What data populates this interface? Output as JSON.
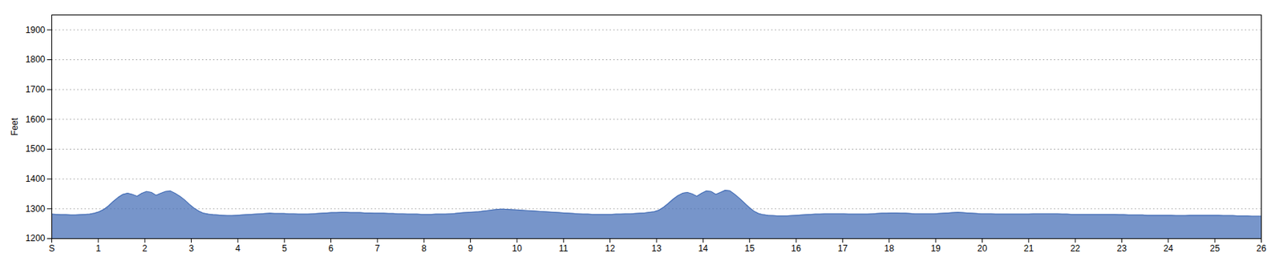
{
  "chart_data": {
    "type": "area",
    "ylabel": "Feet",
    "color": "#4a72b8",
    "grid": "y",
    "xlim": [
      0,
      26
    ],
    "xticks": [
      {
        "value": 0,
        "label": "S"
      },
      1,
      2,
      3,
      4,
      5,
      6,
      7,
      8,
      9,
      10,
      11,
      12,
      13,
      14,
      15,
      16,
      17,
      18,
      19,
      20,
      21,
      22,
      23,
      24,
      25,
      26
    ],
    "ylim": [
      1200,
      1950
    ],
    "yticks": [
      1200,
      1300,
      1400,
      1500,
      1600,
      1700,
      1800,
      1900
    ],
    "x": [
      0,
      0.102,
      0.204,
      0.306,
      0.408,
      0.51,
      0.612,
      0.714,
      0.816,
      0.918,
      1.02,
      1.122,
      1.224,
      1.325,
      1.427,
      1.529,
      1.631,
      1.733,
      1.835,
      1.937,
      2.039,
      2.141,
      2.243,
      2.345,
      2.447,
      2.549,
      2.651,
      2.753,
      2.855,
      2.957,
      3.059,
      3.161,
      3.263,
      3.365,
      3.467,
      3.569,
      3.671,
      3.773,
      3.875,
      3.976,
      4.078,
      4.18,
      4.282,
      4.384,
      4.486,
      4.588,
      4.69,
      4.792,
      4.894,
      4.996,
      5.098,
      5.2,
      5.302,
      5.404,
      5.506,
      5.608,
      5.71,
      5.812,
      5.914,
      6.016,
      6.118,
      6.22,
      6.322,
      6.424,
      6.525,
      6.627,
      6.729,
      6.831,
      6.933,
      7.035,
      7.137,
      7.239,
      7.341,
      7.443,
      7.545,
      7.647,
      7.749,
      7.851,
      7.953,
      8.055,
      8.157,
      8.259,
      8.361,
      8.463,
      8.565,
      8.667,
      8.769,
      8.871,
      8.973,
      9.075,
      9.176,
      9.278,
      9.38,
      9.482,
      9.584,
      9.686,
      9.788,
      9.89,
      9.992,
      10.094,
      10.196,
      10.298,
      10.4,
      10.502,
      10.604,
      10.706,
      10.808,
      10.91,
      11.012,
      11.114,
      11.216,
      11.318,
      11.42,
      11.522,
      11.624,
      11.725,
      11.827,
      11.929,
      12.031,
      12.133,
      12.235,
      12.337,
      12.439,
      12.541,
      12.643,
      12.745,
      12.847,
      12.949,
      13.051,
      13.153,
      13.255,
      13.357,
      13.459,
      13.561,
      13.663,
      13.765,
      13.867,
      13.969,
      14.071,
      14.173,
      14.275,
      14.376,
      14.478,
      14.58,
      14.682,
      14.784,
      14.886,
      14.988,
      15.09,
      15.192,
      15.294,
      15.396,
      15.498,
      15.6,
      15.702,
      15.804,
      15.906,
      16.008,
      16.11,
      16.212,
      16.314,
      16.416,
      16.518,
      16.62,
      16.722,
      16.824,
      16.925,
      17.027,
      17.129,
      17.231,
      17.333,
      17.435,
      17.537,
      17.639,
      17.741,
      17.843,
      17.945,
      18.047,
      18.149,
      18.251,
      18.353,
      18.455,
      18.557,
      18.659,
      18.761,
      18.863,
      18.965,
      19.067,
      19.169,
      19.271,
      19.373,
      19.475,
      19.576,
      19.678,
      19.78,
      19.882,
      19.984,
      20.086,
      20.188,
      20.29,
      20.392,
      20.494,
      20.596,
      20.698,
      20.8,
      20.902,
      21.004,
      21.106,
      21.208,
      21.31,
      21.412,
      21.514,
      21.616,
      21.718,
      21.82,
      21.922,
      22.024,
      22.125,
      22.227,
      22.329,
      22.431,
      22.533,
      22.635,
      22.737,
      22.839,
      22.941,
      23.043,
      23.145,
      23.247,
      23.349,
      23.451,
      23.553,
      23.655,
      23.757,
      23.859,
      23.961,
      24.063,
      24.165,
      24.267,
      24.369,
      24.471,
      24.573,
      24.675,
      24.776,
      24.878,
      24.98,
      25.082,
      25.184,
      25.286,
      25.388,
      25.49,
      25.592,
      25.694,
      25.796,
      25.898,
      26
    ],
    "values": [
      1282,
      1281,
      1280,
      1280,
      1279,
      1279,
      1280,
      1281,
      1282,
      1285,
      1290,
      1298,
      1310,
      1325,
      1338,
      1348,
      1352,
      1348,
      1342,
      1352,
      1358,
      1355,
      1345,
      1352,
      1358,
      1360,
      1352,
      1342,
      1330,
      1315,
      1302,
      1292,
      1285,
      1282,
      1280,
      1279,
      1278,
      1277,
      1277,
      1278,
      1279,
      1280,
      1281,
      1282,
      1283,
      1284,
      1285,
      1284,
      1284,
      1284,
      1283,
      1283,
      1282,
      1282,
      1282,
      1283,
      1284,
      1285,
      1286,
      1287,
      1287,
      1288,
      1288,
      1287,
      1287,
      1287,
      1286,
      1286,
      1285,
      1285,
      1285,
      1284,
      1284,
      1283,
      1283,
      1282,
      1282,
      1282,
      1281,
      1281,
      1281,
      1282,
      1282,
      1282,
      1283,
      1284,
      1286,
      1287,
      1288,
      1289,
      1290,
      1292,
      1294,
      1296,
      1298,
      1299,
      1298,
      1297,
      1296,
      1295,
      1294,
      1293,
      1292,
      1291,
      1290,
      1289,
      1288,
      1287,
      1286,
      1285,
      1284,
      1283,
      1282,
      1282,
      1281,
      1281,
      1281,
      1281,
      1281,
      1282,
      1282,
      1283,
      1283,
      1284,
      1285,
      1286,
      1288,
      1290,
      1295,
      1305,
      1318,
      1332,
      1344,
      1352,
      1355,
      1350,
      1342,
      1352,
      1360,
      1358,
      1348,
      1355,
      1362,
      1360,
      1348,
      1335,
      1320,
      1305,
      1292,
      1284,
      1280,
      1278,
      1277,
      1276,
      1276,
      1276,
      1277,
      1278,
      1279,
      1280,
      1281,
      1282,
      1282,
      1283,
      1283,
      1283,
      1283,
      1283,
      1282,
      1282,
      1282,
      1282,
      1282,
      1283,
      1284,
      1285,
      1285,
      1286,
      1286,
      1285,
      1285,
      1284,
      1283,
      1283,
      1283,
      1283,
      1283,
      1284,
      1285,
      1286,
      1287,
      1288,
      1287,
      1286,
      1285,
      1284,
      1283,
      1283,
      1283,
      1282,
      1282,
      1282,
      1282,
      1282,
      1282,
      1282,
      1282,
      1283,
      1283,
      1283,
      1283,
      1283,
      1283,
      1282,
      1282,
      1281,
      1281,
      1281,
      1281,
      1281,
      1281,
      1281,
      1281,
      1281,
      1281,
      1280,
      1280,
      1279,
      1279,
      1279,
      1279,
      1278,
      1278,
      1278,
      1278,
      1278,
      1278,
      1277,
      1277,
      1277,
      1278,
      1278,
      1278,
      1278,
      1278,
      1278,
      1278,
      1277,
      1277,
      1277,
      1276,
      1276,
      1276,
      1275,
      1275,
      1275
    ]
  }
}
